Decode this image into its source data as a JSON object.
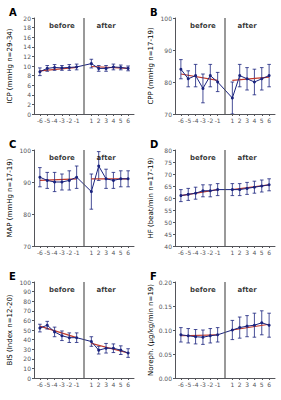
{
  "chart_data": [
    {
      "type": "line",
      "title": "A",
      "ylabel": "ICP (mmHg n=29-34)",
      "x": [
        -6,
        -5,
        -4,
        -3,
        -2,
        -1,
        1,
        2,
        3,
        4,
        5,
        6
      ],
      "xlim": [
        -6.8,
        6.8
      ],
      "xticks": [
        -6,
        -5,
        -4,
        -3,
        -2,
        -1,
        1,
        2,
        3,
        4,
        5,
        6
      ],
      "ylim": [
        0,
        20
      ],
      "yticks": [
        0,
        2,
        4,
        6,
        8,
        10,
        12,
        14,
        16,
        18,
        20
      ],
      "grid": false,
      "series": [
        {
          "type": "line",
          "x": [
            -6,
            -1
          ],
          "values": [
            9.0,
            9.7
          ],
          "color": "#c0392b",
          "marker": "none"
        },
        {
          "type": "line",
          "x": [
            1,
            6
          ],
          "values": [
            9.9,
            9.5
          ],
          "color": "#c0392b",
          "marker": "none"
        },
        {
          "type": "line",
          "values": [
            8.8,
            9.5,
            9.7,
            9.6,
            9.7,
            9.8,
            10.5,
            9.5,
            9.5,
            9.8,
            9.7,
            9.5
          ],
          "err": [
            0.8,
            0.6,
            0.6,
            0.5,
            0.6,
            0.6,
            0.9,
            0.6,
            0.6,
            0.6,
            0.5,
            0.5
          ],
          "color": "#1a237e",
          "marker": "o"
        },
        {
          "type": "line",
          "x": [
            0,
            0
          ],
          "values": [
            0,
            20
          ],
          "color": "#555555",
          "marker": "none"
        }
      ],
      "annotations": [
        {
          "text": "before",
          "x": -3
        },
        {
          "text": "after",
          "x": 3
        }
      ]
    },
    {
      "type": "line",
      "title": "B",
      "ylabel": "CPP (mmHg n=17-19)",
      "x": [
        -6,
        -5,
        -4,
        -3,
        -2,
        -1,
        1,
        2,
        3,
        4,
        5,
        6
      ],
      "xlim": [
        -6.8,
        6.8
      ],
      "xticks": [
        -6,
        -5,
        -4,
        -3,
        -2,
        -1,
        1,
        2,
        3,
        4,
        5,
        6
      ],
      "ylim": [
        70,
        100
      ],
      "yticks": [
        70,
        80,
        90,
        100
      ],
      "grid": false,
      "series": [
        {
          "type": "line",
          "x": [
            -6,
            -1
          ],
          "values": [
            82.5,
            80.5
          ],
          "color": "#c0392b",
          "marker": "none"
        },
        {
          "type": "line",
          "x": [
            1,
            6
          ],
          "values": [
            80.5,
            81.5
          ],
          "color": "#c0392b",
          "marker": "none"
        },
        {
          "type": "line",
          "values": [
            84.0,
            81.0,
            82.0,
            78.0,
            82.0,
            80.0,
            75.0,
            82.0,
            81.0,
            80.0,
            81.0,
            82.0
          ],
          "err": [
            3.0,
            2.5,
            3.5,
            4.5,
            3.5,
            3.0,
            5.0,
            3.5,
            3.5,
            4.0,
            3.5,
            3.5
          ],
          "color": "#1a237e",
          "marker": "o"
        },
        {
          "type": "line",
          "x": [
            0,
            0
          ],
          "values": [
            70,
            100
          ],
          "color": "#555555",
          "marker": "none"
        }
      ],
      "annotations": [
        {
          "text": "before",
          "x": -3
        },
        {
          "text": "after",
          "x": 3
        }
      ]
    },
    {
      "type": "line",
      "title": "C",
      "ylabel": "MAP (mmHg n=17-19)",
      "x": [
        -6,
        -5,
        -4,
        -3,
        -2,
        -1,
        1,
        2,
        3,
        4,
        5,
        6
      ],
      "xlim": [
        -6.8,
        6.8
      ],
      "xticks": [
        -6,
        -5,
        -4,
        -3,
        -2,
        -1,
        1,
        2,
        3,
        4,
        5,
        6
      ],
      "ylim": [
        70,
        100
      ],
      "yticks": [
        70,
        80,
        90,
        100
      ],
      "grid": false,
      "series": [
        {
          "type": "line",
          "x": [
            -6,
            -1
          ],
          "values": [
            90.5,
            91.0
          ],
          "color": "#c0392b",
          "marker": "none"
        },
        {
          "type": "line",
          "x": [
            1,
            6
          ],
          "values": [
            91.0,
            91.0
          ],
          "color": "#c0392b",
          "marker": "none"
        },
        {
          "type": "line",
          "values": [
            91.5,
            90.5,
            90.0,
            90.0,
            90.5,
            91.5,
            87.0,
            95.0,
            91.0,
            90.5,
            91.0,
            91.0
          ],
          "err": [
            3.0,
            2.5,
            3.0,
            2.5,
            3.0,
            3.5,
            5.5,
            4.5,
            3.0,
            2.5,
            2.5,
            2.5
          ],
          "color": "#1a237e",
          "marker": "o"
        },
        {
          "type": "line",
          "x": [
            0,
            0
          ],
          "values": [
            70,
            100
          ],
          "color": "#555555",
          "marker": "none"
        }
      ],
      "annotations": [
        {
          "text": "before",
          "x": -3
        },
        {
          "text": "after",
          "x": 3
        }
      ]
    },
    {
      "type": "line",
      "title": "D",
      "ylabel": "HF (beat/min n=17-19)",
      "x": [
        -6,
        -5,
        -4,
        -3,
        -2,
        -1,
        1,
        2,
        3,
        4,
        5,
        6
      ],
      "xlim": [
        -6.8,
        6.8
      ],
      "xticks": [
        -6,
        -5,
        -4,
        -3,
        -2,
        -1,
        1,
        2,
        3,
        4,
        5,
        6
      ],
      "ylim": [
        40,
        80
      ],
      "yticks": [
        40,
        45,
        50,
        55,
        60,
        65,
        70,
        75,
        80
      ],
      "grid": false,
      "series": [
        {
          "type": "line",
          "x": [
            -6,
            -1
          ],
          "values": [
            61.0,
            63.5
          ],
          "color": "#c0392b",
          "marker": "none"
        },
        {
          "type": "line",
          "x": [
            1,
            6
          ],
          "values": [
            63.5,
            65.5
          ],
          "color": "#c0392b",
          "marker": "none"
        },
        {
          "type": "line",
          "values": [
            61.0,
            61.5,
            62.0,
            63.0,
            63.0,
            63.5,
            63.5,
            63.5,
            64.0,
            64.5,
            65.0,
            65.5
          ],
          "err": [
            2.5,
            2.5,
            2.5,
            2.5,
            2.5,
            2.5,
            2.5,
            2.5,
            2.5,
            2.5,
            2.5,
            2.5
          ],
          "color": "#1a237e",
          "marker": "o"
        },
        {
          "type": "line",
          "x": [
            0,
            0
          ],
          "values": [
            40,
            80
          ],
          "color": "#555555",
          "marker": "none"
        }
      ],
      "annotations": [
        {
          "text": "before",
          "x": -3
        },
        {
          "text": "after",
          "x": 3
        }
      ]
    },
    {
      "type": "line",
      "title": "E",
      "ylabel": "BIS (Index n=12-20)",
      "x": [
        -6,
        -5,
        -4,
        -3,
        -2,
        -1,
        1,
        2,
        3,
        4,
        5,
        6
      ],
      "xlim": [
        -6.8,
        6.8
      ],
      "xticks": [
        -6,
        -5,
        -4,
        -3,
        -2,
        -1,
        1,
        2,
        3,
        4,
        5,
        6
      ],
      "ylim": [
        0,
        100
      ],
      "yticks": [
        0,
        10,
        20,
        30,
        40,
        50,
        60,
        70,
        80,
        90,
        100
      ],
      "grid": false,
      "series": [
        {
          "type": "line",
          "x": [
            -6,
            -1
          ],
          "values": [
            54.0,
            42.0
          ],
          "color": "#c0392b",
          "marker": "none"
        },
        {
          "type": "line",
          "x": [
            1,
            6
          ],
          "values": [
            36.0,
            26.0
          ],
          "color": "#c0392b",
          "marker": "none"
        },
        {
          "type": "line",
          "values": [
            52.0,
            55.0,
            48.0,
            44.0,
            42.0,
            42.0,
            38.0,
            29.0,
            31.0,
            31.0,
            29.0,
            26.0
          ],
          "err": [
            4.0,
            4.0,
            5.0,
            5.0,
            5.0,
            5.0,
            5.0,
            4.0,
            5.0,
            4.5,
            4.5,
            4.5
          ],
          "color": "#1a237e",
          "marker": "o"
        },
        {
          "type": "line",
          "x": [
            0,
            0
          ],
          "values": [
            0,
            100
          ],
          "color": "#555555",
          "marker": "none"
        }
      ],
      "annotations": [
        {
          "text": "before",
          "x": -3
        },
        {
          "text": "after",
          "x": 3
        }
      ]
    },
    {
      "type": "line",
      "title": "F",
      "ylabel": "Noreph. (μg/kg/min n=19)",
      "x": [
        -6,
        -5,
        -4,
        -3,
        -2,
        -1,
        1,
        2,
        3,
        4,
        5,
        6
      ],
      "xlim": [
        -6.8,
        6.8
      ],
      "xticks": [
        -6,
        -5,
        -4,
        -3,
        -2,
        -1,
        1,
        2,
        3,
        4,
        5,
        6
      ],
      "ylim": [
        0,
        0.2
      ],
      "yticks": [
        {
          "value": 0.0,
          "label": "0.00"
        },
        0.05,
        {
          "value": 0.1,
          "label": "0.10"
        },
        0.15,
        {
          "value": 0.2,
          "label": "0.20"
        }
      ],
      "grid": false,
      "series": [
        {
          "type": "line",
          "x": [
            -6,
            -1
          ],
          "values": [
            0.088,
            0.09
          ],
          "color": "#c0392b",
          "marker": "none"
        },
        {
          "type": "line",
          "x": [
            1,
            6
          ],
          "values": [
            0.1,
            0.112
          ],
          "color": "#c0392b",
          "marker": "none"
        },
        {
          "type": "line",
          "values": [
            0.09,
            0.088,
            0.086,
            0.085,
            0.088,
            0.09,
            0.1,
            0.105,
            0.108,
            0.11,
            0.115,
            0.11
          ],
          "err": [
            0.015,
            0.015,
            0.015,
            0.015,
            0.015,
            0.015,
            0.02,
            0.022,
            0.022,
            0.025,
            0.025,
            0.025
          ],
          "color": "#1a237e",
          "marker": "o"
        },
        {
          "type": "line",
          "x": [
            0,
            0
          ],
          "values": [
            0,
            0.2
          ],
          "color": "#555555",
          "marker": "none"
        }
      ],
      "annotations": [
        {
          "text": "before",
          "x": -3
        },
        {
          "text": "after",
          "x": 3
        }
      ]
    }
  ]
}
